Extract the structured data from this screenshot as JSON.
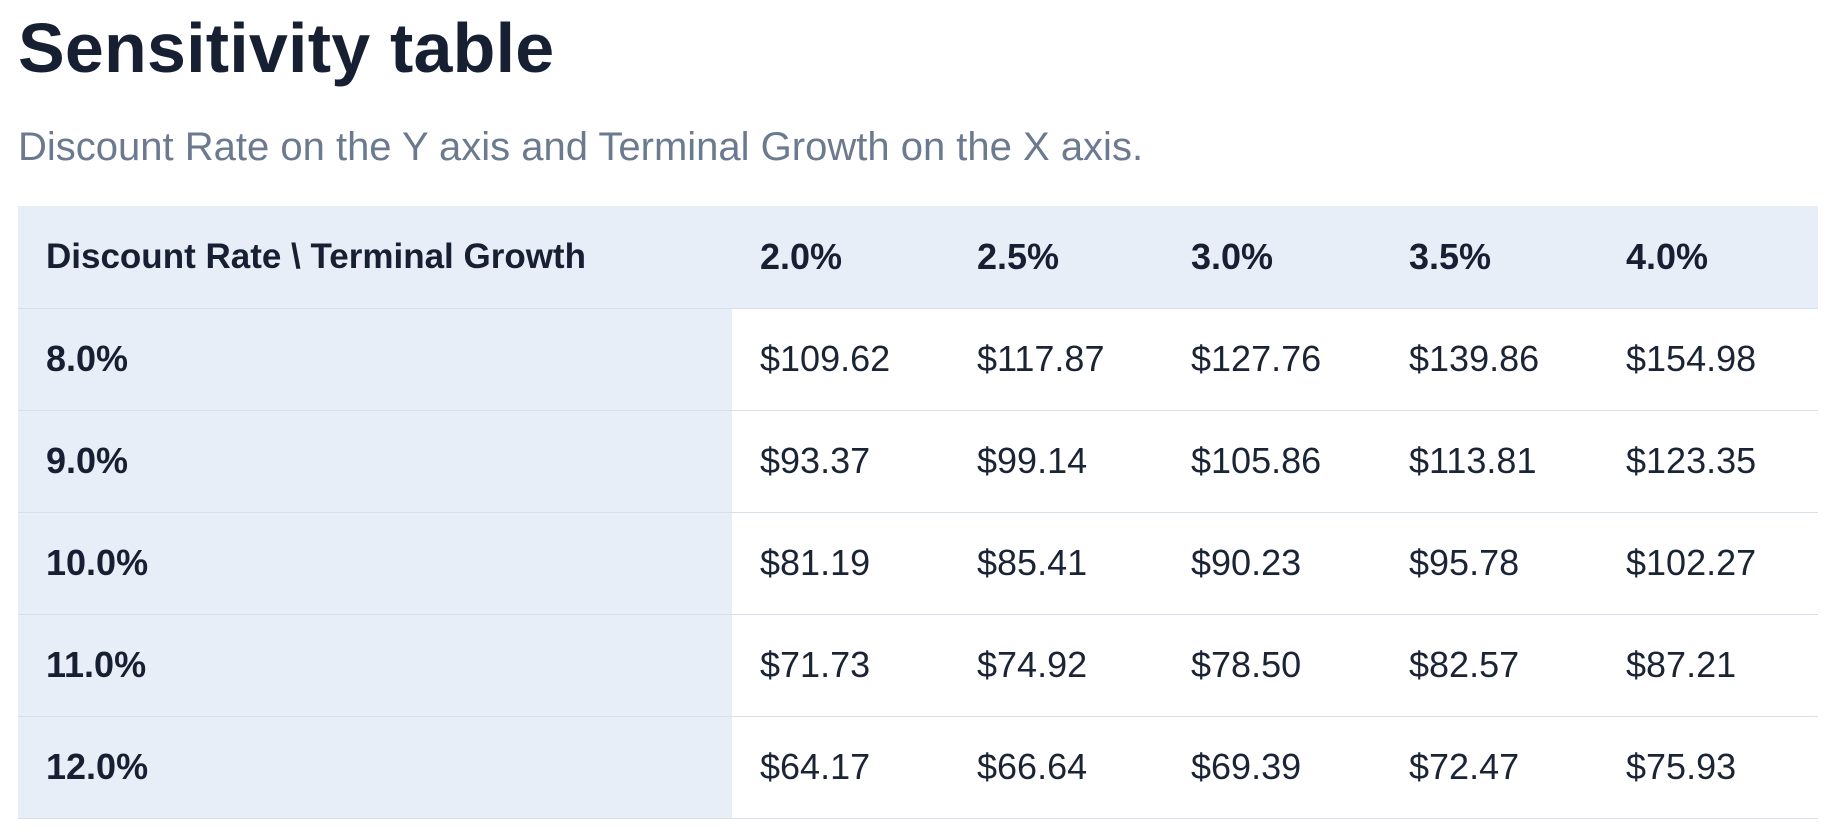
{
  "page": {
    "title": "Sensitivity table",
    "subtitle": "Discount Rate on the Y axis and Terminal Growth on the X axis."
  },
  "table": {
    "corner_label": "Discount Rate \\ Terminal Growth",
    "columns": [
      "2.0%",
      "2.5%",
      "3.0%",
      "3.5%",
      "4.0%"
    ],
    "rows": [
      {
        "label": "8.0%",
        "values": [
          "$109.62",
          "$117.87",
          "$127.76",
          "$139.86",
          "$154.98"
        ]
      },
      {
        "label": "9.0%",
        "values": [
          "$93.37",
          "$99.14",
          "$105.86",
          "$113.81",
          "$123.35"
        ]
      },
      {
        "label": "10.0%",
        "values": [
          "$81.19",
          "$85.41",
          "$90.23",
          "$95.78",
          "$102.27"
        ]
      },
      {
        "label": "11.0%",
        "values": [
          "$71.73",
          "$74.92",
          "$78.50",
          "$82.57",
          "$87.21"
        ]
      },
      {
        "label": "12.0%",
        "values": [
          "$64.17",
          "$66.64",
          "$69.39",
          "$72.47",
          "$75.93"
        ]
      }
    ]
  },
  "colors": {
    "header_background": "#e8eef7",
    "title_text": "#172033",
    "subtitle_text": "#6b7a8f",
    "row_divider": "#d6dfea"
  }
}
